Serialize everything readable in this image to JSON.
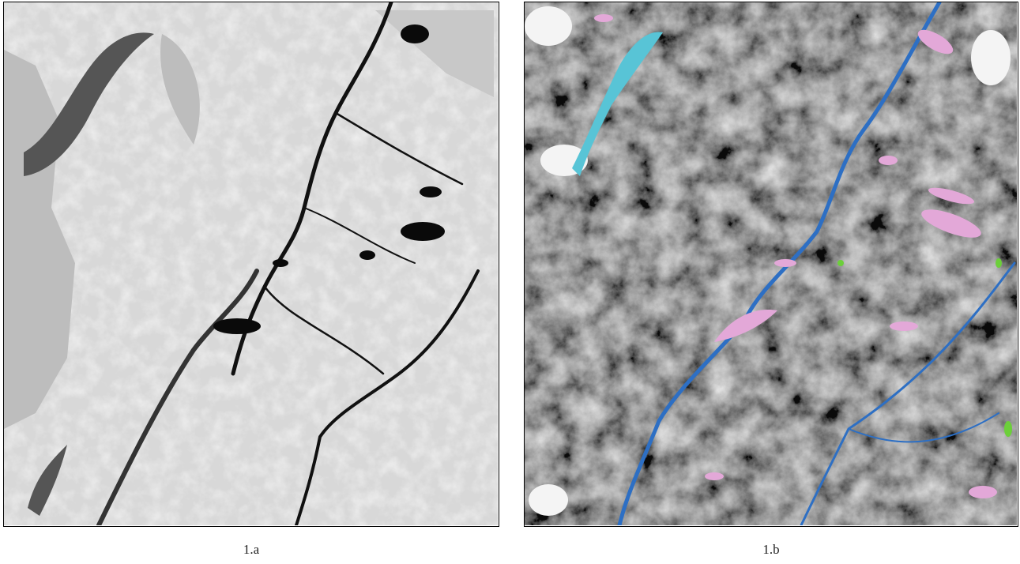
{
  "panels": [
    {
      "caption": "1.a"
    },
    {
      "caption": "1.b"
    }
  ]
}
